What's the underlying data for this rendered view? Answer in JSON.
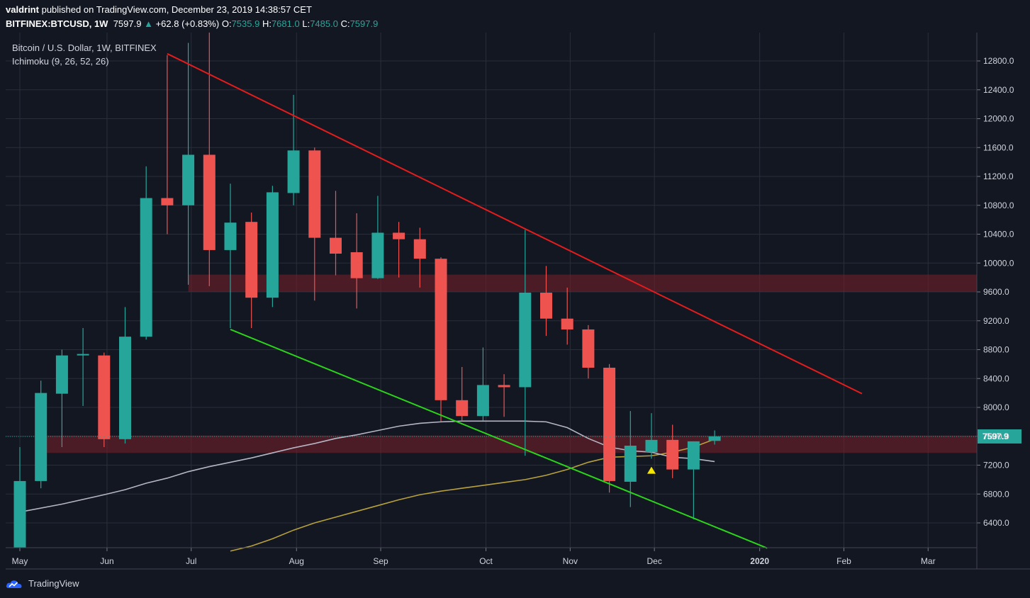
{
  "header": {
    "publisher": "valdrint",
    "published_text": "published on TradingView.com, December 23, 2019 14:38:57 CET",
    "symbol": "BITFINEX:BTCUSD, 1W",
    "last_price": "7597.9",
    "change": "+62.8 (+0.83%)",
    "open_label": "O:",
    "open": "7535.9",
    "high_label": "H:",
    "high": "7681.0",
    "low_label": "L:",
    "low": "7485.0",
    "close_label": "C:",
    "close": "7597.9"
  },
  "chart_legend": {
    "title": "Bitcoin / U.S. Dollar, 1W, BITFINEX",
    "indicator": "Ichimoku (9, 26, 52, 26)"
  },
  "footer": {
    "brand": "TradingView"
  },
  "colors": {
    "background": "#131722",
    "up": "#26a69a",
    "down": "#ef5350",
    "resistance_line": "#e51c1c",
    "support_line": "#2bd41a",
    "zone": "#7a1f2a",
    "ichimoku_base": "#b5b5c3",
    "ichimoku_span": "#b8a13a",
    "signal": "#f7e600"
  },
  "chart_data": {
    "type": "candlestick",
    "timeframe": "1W",
    "ylim": [
      6100,
      13000
    ],
    "y_ticks": [
      6400,
      6800,
      7200,
      7600,
      8000,
      8400,
      8800,
      9200,
      9600,
      10000,
      10400,
      10800,
      11200,
      11600,
      12000,
      12400,
      12800
    ],
    "x_labels": [
      "May",
      "Jun",
      "Jul",
      "Aug",
      "Sep",
      "Oct",
      "Nov",
      "Dec",
      "2020",
      "Feb",
      "Mar"
    ],
    "x_label_weeks": [
      0,
      4.14,
      8.14,
      13.14,
      17.14,
      22.14,
      26.14,
      30.14,
      35.14,
      39.14,
      43.14
    ],
    "last_price_label": "7597.9",
    "candles": [
      {
        "w": 0,
        "o": 5700,
        "h": 7450,
        "l": 5600,
        "c": 6980
      },
      {
        "w": 1,
        "o": 6980,
        "h": 8370,
        "l": 6880,
        "c": 8200
      },
      {
        "w": 2,
        "o": 8190,
        "h": 8800,
        "l": 7450,
        "c": 8720
      },
      {
        "w": 3,
        "o": 8720,
        "h": 9100,
        "l": 8020,
        "c": 8740
      },
      {
        "w": 4,
        "o": 8720,
        "h": 8760,
        "l": 7450,
        "c": 7560
      },
      {
        "w": 5,
        "o": 7560,
        "h": 9390,
        "l": 7500,
        "c": 8980
      },
      {
        "w": 6,
        "o": 8980,
        "h": 11340,
        "l": 8940,
        "c": 10900
      },
      {
        "w": 7,
        "o": 10900,
        "h": 12880,
        "l": 10400,
        "c": 10800
      },
      {
        "w": 8,
        "o": 10800,
        "h": 13050,
        "l": 9700,
        "c": 11500
      },
      {
        "w": 9,
        "o": 11500,
        "h": 13200,
        "l": 9680,
        "c": 10180
      },
      {
        "w": 10,
        "o": 10180,
        "h": 11100,
        "l": 9100,
        "c": 10560
      },
      {
        "w": 11,
        "o": 10570,
        "h": 10700,
        "l": 9100,
        "c": 9520
      },
      {
        "w": 12,
        "o": 9520,
        "h": 11070,
        "l": 9390,
        "c": 10980
      },
      {
        "w": 13,
        "o": 10970,
        "h": 12330,
        "l": 10800,
        "c": 11560
      },
      {
        "w": 14,
        "o": 11560,
        "h": 11600,
        "l": 9480,
        "c": 10350
      },
      {
        "w": 15,
        "o": 10350,
        "h": 11000,
        "l": 9830,
        "c": 10130
      },
      {
        "w": 16,
        "o": 10150,
        "h": 10690,
        "l": 9370,
        "c": 9790
      },
      {
        "w": 17,
        "o": 9790,
        "h": 10930,
        "l": 9780,
        "c": 10420
      },
      {
        "w": 18,
        "o": 10420,
        "h": 10570,
        "l": 9800,
        "c": 10330
      },
      {
        "w": 19,
        "o": 10330,
        "h": 10490,
        "l": 9660,
        "c": 10060
      },
      {
        "w": 20,
        "o": 10060,
        "h": 10080,
        "l": 7810,
        "c": 8100
      },
      {
        "w": 21,
        "o": 8100,
        "h": 8560,
        "l": 7810,
        "c": 7880
      },
      {
        "w": 22,
        "o": 7880,
        "h": 8830,
        "l": 7820,
        "c": 8310
      },
      {
        "w": 23,
        "o": 8310,
        "h": 8460,
        "l": 7870,
        "c": 8280
      },
      {
        "w": 24,
        "o": 8280,
        "h": 10460,
        "l": 7330,
        "c": 9590
      },
      {
        "w": 25,
        "o": 9590,
        "h": 9960,
        "l": 8990,
        "c": 9230
      },
      {
        "w": 26,
        "o": 9230,
        "h": 9660,
        "l": 8870,
        "c": 9080
      },
      {
        "w": 27,
        "o": 9080,
        "h": 9140,
        "l": 8400,
        "c": 8550
      },
      {
        "w": 28,
        "o": 8550,
        "h": 8600,
        "l": 6820,
        "c": 6980
      },
      {
        "w": 29,
        "o": 6970,
        "h": 7950,
        "l": 6620,
        "c": 7470
      },
      {
        "w": 30,
        "o": 7380,
        "h": 7920,
        "l": 7290,
        "c": 7550
      },
      {
        "w": 31,
        "o": 7550,
        "h": 7760,
        "l": 7020,
        "c": 7140
      },
      {
        "w": 32,
        "o": 7140,
        "h": 7530,
        "l": 6450,
        "c": 7530
      },
      {
        "w": 33,
        "o": 7535.9,
        "h": 7681,
        "l": 7485,
        "c": 7597.9
      }
    ],
    "ichimoku_base_line": {
      "weeks": [
        0,
        2,
        4,
        5,
        6,
        7,
        8,
        9,
        10,
        11,
        12,
        13,
        14,
        15,
        16,
        17,
        18,
        19,
        20,
        21,
        22,
        23,
        24,
        25,
        26,
        27,
        28,
        29,
        30,
        31,
        32,
        33
      ],
      "values": [
        6550,
        6660,
        6790,
        6860,
        6950,
        7020,
        7110,
        7180,
        7240,
        7300,
        7370,
        7440,
        7500,
        7570,
        7620,
        7680,
        7740,
        7780,
        7800,
        7810,
        7810,
        7810,
        7810,
        7800,
        7720,
        7570,
        7450,
        7400,
        7380,
        7310,
        7290,
        7250
      ]
    },
    "ichimoku_span_line": {
      "weeks": [
        10,
        11,
        12,
        13,
        14,
        15,
        16,
        17,
        18,
        19,
        20,
        21,
        22,
        23,
        24,
        25,
        26,
        27,
        28,
        29,
        30,
        31,
        32,
        33
      ],
      "values": [
        6010,
        6080,
        6180,
        6300,
        6400,
        6480,
        6560,
        6640,
        6720,
        6790,
        6840,
        6880,
        6920,
        6960,
        7000,
        7060,
        7140,
        7240,
        7310,
        7320,
        7330,
        7380,
        7450,
        7560
      ]
    },
    "resistance_line": {
      "from": {
        "w": 7,
        "v": 12900
      },
      "to": {
        "w": 40,
        "v": 8190
      }
    },
    "support_line": {
      "from": {
        "w": 10,
        "v": 9080
      },
      "to": {
        "w": 35.5,
        "v": 6050
      }
    },
    "zones": [
      {
        "top": 9840,
        "bottom": 9600,
        "from_w": 8
      },
      {
        "top": 7610,
        "bottom": 7370,
        "from_w": 1
      }
    ],
    "signal_marker": {
      "w": 30,
      "v": 7130
    }
  }
}
